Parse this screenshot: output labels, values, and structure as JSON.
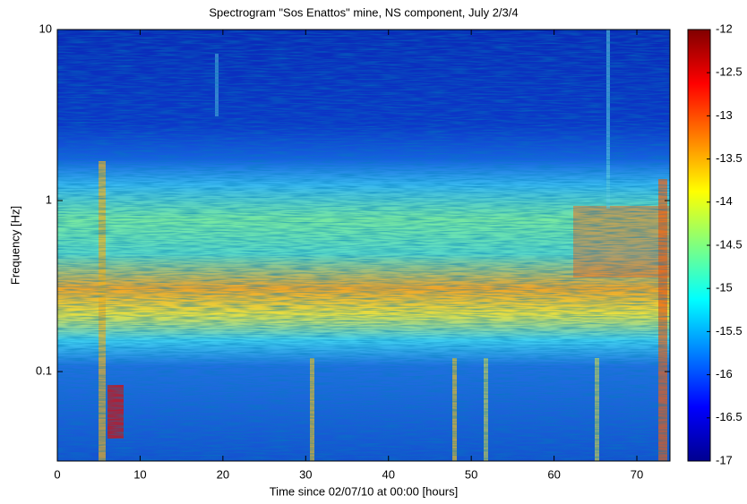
{
  "chart_data": {
    "type": "spectrogram",
    "title": "Spectrogram \"Sos Enattos\" mine, NS component, July 2/3/4",
    "xlabel": "Time since 02/07/10 at 00:00 [hours]",
    "ylabel": "Frequency [Hz]",
    "xlim": [
      0,
      74
    ],
    "xticks": [
      0,
      10,
      20,
      30,
      40,
      50,
      60,
      70
    ],
    "ylim": [
      0.03,
      10
    ],
    "yticks": [
      0.1,
      1,
      10
    ],
    "ylog": true,
    "clim": [
      -17,
      -12
    ],
    "cticks": [
      -17,
      -16.5,
      -16,
      -15.5,
      -15,
      -14.5,
      -14,
      -13.5,
      -13,
      -12.5,
      -12
    ]
  }
}
